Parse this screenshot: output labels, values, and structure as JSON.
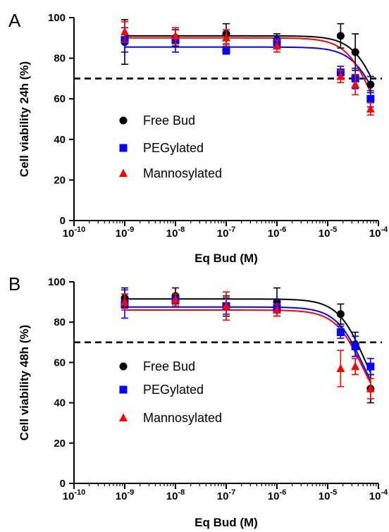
{
  "chart_data": [
    {
      "type": "scatter",
      "panel_label": "A",
      "title": "",
      "xlabel": "Eq Bud (M)",
      "ylabel": "Cell viability 24h (%)",
      "x_scale": "log",
      "xlim": [
        1e-10,
        0.0001
      ],
      "ylim": [
        0,
        100
      ],
      "x_tick_labels": [
        {
          "base": "10",
          "exp": "-10"
        },
        {
          "base": "10",
          "exp": "-9"
        },
        {
          "base": "10",
          "exp": "-8"
        },
        {
          "base": "10",
          "exp": "-7"
        },
        {
          "base": "10",
          "exp": "-6"
        },
        {
          "base": "10",
          "exp": "-5"
        },
        {
          "base": "10",
          "exp": "-4"
        }
      ],
      "y_ticks": [
        "0",
        "20",
        "40",
        "60",
        "80",
        "100"
      ],
      "reference_line": 70,
      "legend_position": "center-left",
      "fit": "sigmoidal dose-response curves",
      "series": [
        {
          "name": "Free Bud",
          "color": "#000000",
          "marker": "circle",
          "x": [
            1e-09,
            1e-08,
            1e-07,
            1e-06,
            1.8e-05,
            3.5e-05,
            7e-05
          ],
          "y": [
            88,
            90,
            92,
            89,
            91,
            83,
            67
          ],
          "err": [
            11,
            4,
            5,
            3,
            6,
            9,
            4
          ],
          "fit_top": 91,
          "fit_bottom": 30,
          "fit_ec50": 0.00011
        },
        {
          "name": "PEGylated",
          "color": "#0000ff",
          "marker": "square",
          "x": [
            1e-09,
            1e-08,
            1e-07,
            1e-06,
            1.8e-05,
            3.5e-05,
            7e-05
          ],
          "y": [
            89,
            89,
            84,
            88,
            73,
            70,
            60
          ],
          "err": [
            6,
            6,
            2,
            2,
            3,
            5,
            4
          ],
          "fit_top": 85.5,
          "fit_bottom": 30,
          "fit_ec50": 0.000105
        },
        {
          "name": "Mannosylated",
          "color": "#ff0000",
          "marker": "triangle",
          "x": [
            1e-09,
            1e-08,
            1e-07,
            1e-06,
            1.8e-05,
            3.5e-05,
            7e-05
          ],
          "y": [
            93,
            91,
            90,
            86,
            71,
            67,
            55
          ],
          "err": [
            5,
            4,
            4,
            3,
            3,
            5,
            3
          ],
          "fit_top": 90,
          "fit_bottom": 30,
          "fit_ec50": 8e-05
        }
      ]
    },
    {
      "type": "scatter",
      "panel_label": "B",
      "title": "",
      "xlabel": "Eq Bud (M)",
      "ylabel": "Cell viability 48h (%)",
      "x_scale": "log",
      "xlim": [
        1e-10,
        0.0001
      ],
      "ylim": [
        0,
        100
      ],
      "x_tick_labels": [
        {
          "base": "10",
          "exp": "-10"
        },
        {
          "base": "10",
          "exp": "-9"
        },
        {
          "base": "10",
          "exp": "-8"
        },
        {
          "base": "10",
          "exp": "-7"
        },
        {
          "base": "10",
          "exp": "-6"
        },
        {
          "base": "10",
          "exp": "-5"
        },
        {
          "base": "10",
          "exp": "-4"
        }
      ],
      "y_ticks": [
        "0",
        "20",
        "40",
        "60",
        "80",
        "100"
      ],
      "reference_line": 70,
      "legend_position": "center-left",
      "fit": "sigmoidal dose-response curves",
      "series": [
        {
          "name": "Free Bud",
          "color": "#000000",
          "marker": "circle",
          "x": [
            1e-09,
            1e-08,
            1e-07,
            1e-06,
            1.8e-05,
            3.5e-05,
            7e-05
          ],
          "y": [
            92,
            93,
            88,
            90,
            84,
            69,
            47
          ],
          "err": [
            5,
            4,
            5,
            7,
            5,
            6,
            7
          ],
          "fit_top": 91.5,
          "fit_bottom": 30,
          "fit_ec50": 5.5e-05
        },
        {
          "name": "PEGylated",
          "color": "#0000ff",
          "marker": "square",
          "x": [
            1e-09,
            1e-08,
            1e-07,
            1e-06,
            1.8e-05,
            3.5e-05,
            7e-05
          ],
          "y": [
            89,
            91,
            88,
            87,
            75,
            68,
            58
          ],
          "err": [
            7,
            3,
            4,
            4,
            3,
            5,
            4
          ],
          "fit_top": 87.5,
          "fit_bottom": 30,
          "fit_ec50": 5e-05
        },
        {
          "name": "Mannosylated",
          "color": "#ff0000",
          "marker": "triangle",
          "x": [
            1e-09,
            1e-08,
            1e-07,
            1e-06,
            1.8e-05,
            3.5e-05,
            7e-05
          ],
          "y": [
            90,
            91,
            88,
            86,
            57,
            58,
            47
          ],
          "err": [
            4,
            3,
            7,
            3,
            9,
            4,
            5
          ],
          "fit_top": 86,
          "fit_bottom": 30,
          "fit_ec50": 4.8e-05
        }
      ]
    }
  ]
}
